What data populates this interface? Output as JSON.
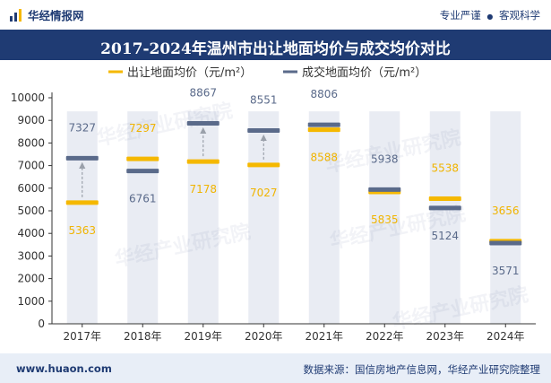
{
  "header": {
    "brand": "华经情报网",
    "slogan_left": "专业严谨",
    "slogan_sep": "●",
    "slogan_right": "客观科学"
  },
  "footer": {
    "url": "www.huaon.com",
    "source": "数据来源：国信房地产信息网，华经产业研究院整理"
  },
  "watermark": "华经产业研究院",
  "colors": {
    "navy": "#1f3b73",
    "series1": "#f5b800",
    "series2": "#5a6a8a",
    "column_bg": "#e9ecf3"
  },
  "chart_data": {
    "type": "dumbbell",
    "title": "2017-2024年温州市出让地面均价与成交均价对比",
    "categories": [
      "2017年",
      "2018年",
      "2019年",
      "2020年",
      "2021年",
      "2022年",
      "2023年",
      "2024年"
    ],
    "series": [
      {
        "name": "出让地面均价（元/m²）",
        "values": [
          5363,
          7297,
          7178,
          7027,
          8588,
          5835,
          5538,
          3656
        ]
      },
      {
        "name": "成交地面均价（元/m²）",
        "values": [
          7327,
          6761,
          8867,
          8551,
          8806,
          5938,
          5124,
          3571
        ]
      }
    ],
    "ylim": [
      0,
      10000
    ],
    "yticks": [
      0,
      1000,
      2000,
      3000,
      4000,
      5000,
      6000,
      7000,
      8000,
      9000,
      10000
    ],
    "legend_position": "top-center",
    "grid": false
  }
}
